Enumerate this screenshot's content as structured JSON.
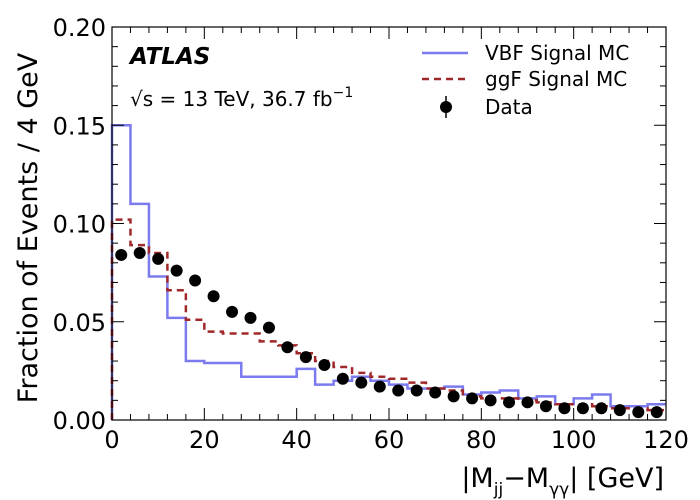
{
  "chart_data": {
    "type": "histogram",
    "xlabel_main": "|M",
    "xlabel_sub1": "jj",
    "xlabel_mid": "−M",
    "xlabel_sub2": "γγ",
    "xlabel_end": "| [GeV]",
    "ylabel": "Fraction of Events / 4 GeV",
    "xlim": [
      0,
      120
    ],
    "ylim": [
      0,
      0.2
    ],
    "x_ticks": [
      "0",
      "20",
      "40",
      "60",
      "80",
      "100",
      "120"
    ],
    "y_ticks": [
      "0.00",
      "0.05",
      "0.10",
      "0.15",
      "0.20"
    ],
    "bin_edges": [
      0,
      4,
      8,
      12,
      16,
      20,
      24,
      28,
      32,
      36,
      40,
      44,
      48,
      52,
      56,
      60,
      64,
      68,
      72,
      76,
      80,
      84,
      88,
      92,
      96,
      100,
      104,
      108,
      112,
      116,
      120
    ],
    "experiment_label": "ATLAS",
    "energy_label_sqrt": "√s",
    "energy_label_text": " = 13 TeV, 36.7 fb",
    "energy_label_sup": "−1",
    "legend_position": "top-right",
    "series": [
      {
        "name": "VBF Signal MC",
        "style": "step-solid",
        "color": "#7b7bef",
        "values": [
          0.15,
          0.11,
          0.073,
          0.052,
          0.03,
          0.029,
          0.029,
          0.022,
          0.022,
          0.022,
          0.026,
          0.018,
          0.02,
          0.022,
          0.02,
          0.018,
          0.016,
          0.016,
          0.017,
          0.013,
          0.014,
          0.015,
          0.011,
          0.012,
          0.008,
          0.011,
          0.013,
          0.007,
          0.007,
          0.008
        ]
      },
      {
        "name": "ggF Signal MC",
        "style": "step-dashed",
        "color": "#a0282a",
        "values": [
          0.102,
          0.089,
          0.085,
          0.066,
          0.051,
          0.045,
          0.044,
          0.044,
          0.04,
          0.038,
          0.034,
          0.03,
          0.027,
          0.024,
          0.022,
          0.021,
          0.019,
          0.016,
          0.015,
          0.012,
          0.011,
          0.011,
          0.01,
          0.009,
          0.008,
          0.008,
          0.007,
          0.006,
          0.006,
          0.005
        ]
      },
      {
        "name": "Data",
        "style": "points-errorbars",
        "color": "#000000",
        "x": [
          2,
          6,
          10,
          14,
          18,
          22,
          26,
          30,
          34,
          38,
          42,
          46,
          50,
          54,
          58,
          62,
          66,
          70,
          74,
          78,
          82,
          86,
          90,
          94,
          98,
          102,
          106,
          110,
          114,
          118
        ],
        "values": [
          0.084,
          0.085,
          0.082,
          0.076,
          0.071,
          0.063,
          0.055,
          0.052,
          0.047,
          0.037,
          0.032,
          0.028,
          0.021,
          0.019,
          0.017,
          0.015,
          0.015,
          0.014,
          0.012,
          0.011,
          0.01,
          0.009,
          0.009,
          0.007,
          0.006,
          0.006,
          0.006,
          0.005,
          0.004,
          0.004
        ]
      }
    ]
  }
}
